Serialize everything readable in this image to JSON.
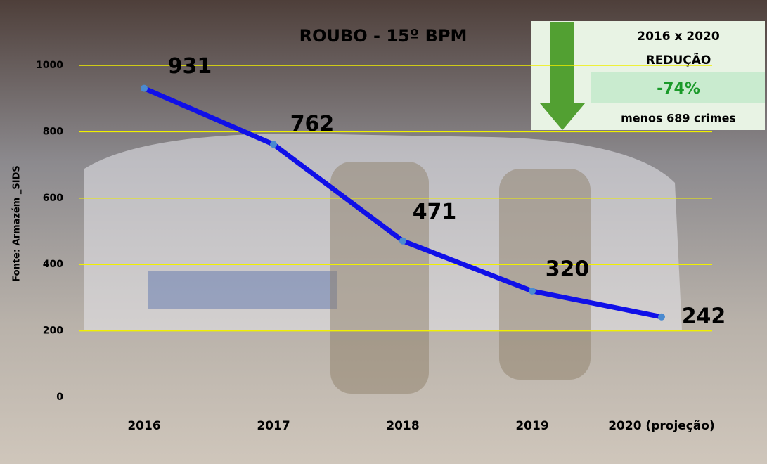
{
  "chart_data": {
    "type": "line",
    "title": "ROUBO - 15º BPM",
    "y_label": "Fonte: Armazém _SIDS",
    "categories": [
      "2016",
      "2017",
      "2018",
      "2019",
      "2020 (projeção)"
    ],
    "values": [
      931,
      762,
      471,
      320,
      242
    ],
    "color": "#1010e8",
    "grid_color": "#f0f000",
    "ylim": [
      0,
      1000
    ],
    "yticks": [
      0,
      200,
      400,
      600,
      800,
      1000
    ],
    "grid": true,
    "annotation": {
      "header": "2016 x 2020",
      "label": "REDUÇÃO",
      "value": "-74%",
      "note": "menos 689 crimes"
    }
  }
}
